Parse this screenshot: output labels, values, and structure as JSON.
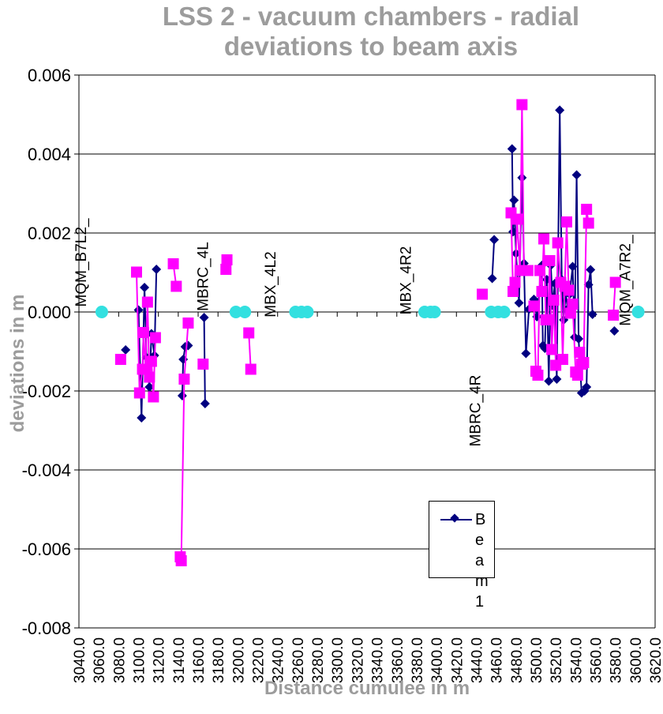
{
  "chart_data": {
    "type": "scatter",
    "title": "LSS 2 - vacuum chambers - radial deviations to beam axis",
    "title_lines": [
      "LSS 2 - vacuum chambers - radial",
      "deviations to beam axis"
    ],
    "xlabel": "Distance cumulee in m",
    "ylabel": "deviations in m",
    "xlim": [
      3040,
      3620
    ],
    "ylim": [
      -0.008,
      0.006
    ],
    "x_ticks": [
      3040,
      3060,
      3080,
      3100,
      3120,
      3140,
      3160,
      3180,
      3200,
      3220,
      3240,
      3260,
      3280,
      3300,
      3320,
      3340,
      3360,
      3380,
      3400,
      3420,
      3440,
      3460,
      3480,
      3500,
      3520,
      3540,
      3560,
      3580,
      3600,
      3620
    ],
    "x_tick_labels": [
      "3040.0",
      "3060.0",
      "3080.0",
      "3100.0",
      "3120.0",
      "3140.0",
      "3160.0",
      "3180.0",
      "3200.0",
      "3220.0",
      "3240.0",
      "3260.0",
      "3280.0",
      "3300.0",
      "3320.0",
      "3340.0",
      "3360.0",
      "3380.0",
      "3400.0",
      "3420.0",
      "3440.0",
      "3460.0",
      "3480.0",
      "3500.0",
      "3520.0",
      "3540.0",
      "3560.0",
      "3580.0",
      "3600.0",
      "3620.0"
    ],
    "y_ticks": [
      -0.008,
      -0.006,
      -0.004,
      -0.002,
      0.0,
      0.002,
      0.004,
      0.006
    ],
    "y_tick_labels": [
      "-0.008",
      "-0.006",
      "-0.004",
      "-0.002",
      "0.000",
      "0.002",
      "0.004",
      "0.006"
    ],
    "grid": "horizontal",
    "legend": {
      "position": "bottom-right",
      "entries": [
        "Be am 1"
      ]
    },
    "series": [
      {
        "name": "Beam 1",
        "color": "#000080",
        "marker": "diamond",
        "segments": [
          [
            [
              3087,
              -0.00096
            ]
          ],
          [
            [
              3100,
              5e-05
            ],
            [
              3103,
              -0.00268
            ],
            [
              3106,
              0.00062
            ],
            [
              3108,
              -0.00115
            ],
            [
              3111,
              -0.0019
            ],
            [
              3113,
              -0.00055
            ],
            [
              3116,
              -0.0011
            ],
            [
              3118,
              0.00108
            ]
          ],
          [
            [
              3144,
              -0.00212
            ],
            [
              3145,
              -0.0012
            ],
            [
              3147,
              -0.00088
            ],
            [
              3150,
              -0.00085
            ]
          ],
          [
            [
              3166,
              -0.00014
            ],
            [
              3167,
              -0.00232
            ]
          ],
          [
            [
              3456,
              0.00085
            ],
            [
              3458,
              0.00183
            ]
          ],
          [
            [
              3476,
              0.00413
            ],
            [
              3477,
              0.00203
            ],
            [
              3478,
              0.00283
            ],
            [
              3480,
              0.00148
            ],
            [
              3483,
              0.00023
            ],
            [
              3486,
              0.0034
            ],
            [
              3488,
              0.00123
            ],
            [
              3490,
              -0.00105
            ],
            [
              3493,
              7e-05
            ],
            [
              3498,
              0.00032
            ],
            [
              3501,
              -0.00012
            ],
            [
              3506,
              0.00118
            ],
            [
              3507,
              -0.00085
            ],
            [
              3509,
              -0.00092
            ],
            [
              3511,
              0.00082
            ],
            [
              3513,
              -0.00175
            ],
            [
              3515,
              0.00118
            ],
            [
              3517,
              0.00016
            ],
            [
              3519,
              0.00072
            ],
            [
              3521,
              -0.0017
            ],
            [
              3524,
              0.00511
            ],
            [
              3526,
              0.00082
            ],
            [
              3528,
              -0.0002
            ],
            [
              3530,
              0.00047
            ],
            [
              3532,
              8e-05
            ],
            [
              3534,
              0.00045
            ],
            [
              3537,
              0.00115
            ],
            [
              3539,
              -0.00064
            ],
            [
              3541,
              0.00347
            ],
            [
              3543,
              -0.00068
            ],
            [
              3546,
              -0.00205
            ],
            [
              3549,
              -0.002
            ],
            [
              3551,
              -0.0019
            ],
            [
              3553,
              0.00069
            ],
            [
              3555,
              0.00107
            ],
            [
              3557,
              -6e-05
            ]
          ],
          [
            [
              3579,
              -0.00048
            ]
          ]
        ]
      },
      {
        "name": "",
        "color": "#ff00ff",
        "marker": "square",
        "segments": [
          [
            [
              3082,
              -0.0012
            ]
          ],
          [
            [
              3098,
              0.00101
            ],
            [
              3101,
              -0.00205
            ],
            [
              3104,
              -0.00145
            ],
            [
              3105,
              -0.00052
            ],
            [
              3107,
              -0.00145
            ],
            [
              3109,
              0.00025
            ],
            [
              3111,
              -0.00165
            ],
            [
              3113,
              -0.00125
            ],
            [
              3115,
              -0.00215
            ],
            [
              3117,
              -0.00065
            ]
          ],
          [
            [
              3135,
              0.00122
            ],
            [
              3138,
              0.00065
            ]
          ],
          [
            [
              3142,
              -0.0062
            ],
            [
              3143,
              -0.0063
            ],
            [
              3146,
              -0.0017
            ],
            [
              3150,
              -0.00028
            ]
          ],
          [
            [
              3165,
              -0.00132
            ]
          ],
          [
            [
              3188,
              0.00108
            ],
            [
              3189,
              0.00132
            ]
          ],
          [
            [
              3211,
              -0.00053
            ],
            [
              3213,
              -0.00145
            ]
          ],
          [
            [
              3446,
              0.00045
            ]
          ],
          [
            [
              3475,
              0.00251
            ],
            [
              3477,
              0.00052
            ],
            [
              3479,
              0.00075
            ],
            [
              3481,
              0.00235
            ],
            [
              3484,
              0.00105
            ],
            [
              3486,
              0.00525
            ],
            [
              3488,
              0.00105
            ],
            [
              3492,
              0.00105
            ]
          ],
          [
            [
              3498,
              0.00015
            ],
            [
              3500,
              -0.0015
            ],
            [
              3502,
              -0.0016
            ],
            [
              3504,
              0.00105
            ],
            [
              3506,
              0.00052
            ],
            [
              3508,
              0.00185
            ],
            [
              3510,
              -0.0002
            ],
            [
              3512,
              -0.0002
            ],
            [
              3514,
              0.0013
            ],
            [
              3516,
              -0.00095
            ],
            [
              3518,
              0.0003
            ],
            [
              3520,
              -0.00135
            ],
            [
              3522,
              0.00175
            ],
            [
              3525,
              0.00075
            ],
            [
              3527,
              -0.0012
            ],
            [
              3529,
              0.00065
            ],
            [
              3531,
              0.00228
            ],
            [
              3533,
              0.00055
            ],
            [
              3535,
              -3e-05
            ],
            [
              3537,
              0.0002
            ],
            [
              3540,
              -0.00152
            ],
            [
              3542,
              -0.0016
            ],
            [
              3544,
              -0.00102
            ],
            [
              3546,
              -0.00132
            ],
            [
              3548,
              -0.00128
            ],
            [
              3551,
              0.0026
            ],
            [
              3553,
              0.00225
            ]
          ],
          [
            [
              3578,
              -8e-05
            ],
            [
              3580,
              0.00075
            ]
          ]
        ]
      },
      {
        "name": "",
        "color": "#33e0e0",
        "marker": "circle",
        "points": [
          [
            3063,
            0.0
          ],
          [
            3198,
            0.0
          ],
          [
            3207,
            0.0
          ],
          [
            3258,
            0.0
          ],
          [
            3264,
            0.0
          ],
          [
            3270,
            0.0
          ],
          [
            3388,
            0.0
          ],
          [
            3394,
            0.0
          ],
          [
            3398,
            0.0
          ],
          [
            3455,
            0.0
          ],
          [
            3462,
            0.0
          ],
          [
            3468,
            0.0
          ],
          [
            3603,
            0.0
          ]
        ]
      }
    ],
    "annotations": [
      {
        "text": "MQM_B7L2_",
        "x": 3047,
        "y": 0.00125
      },
      {
        "text": "MBRC_4L",
        "x": 3170,
        "y": 0.0009
      },
      {
        "text": "MBX_4L2",
        "x": 3238,
        "y": 0.0007
      },
      {
        "text": "MBX_4R2",
        "x": 3374,
        "y": 0.0008
      },
      {
        "text": "MBRC_4R",
        "x": 3444,
        "y": -0.0025
      },
      {
        "text": "MQM_A7R2_",
        "x": 3595,
        "y": 0.0008
      }
    ]
  }
}
